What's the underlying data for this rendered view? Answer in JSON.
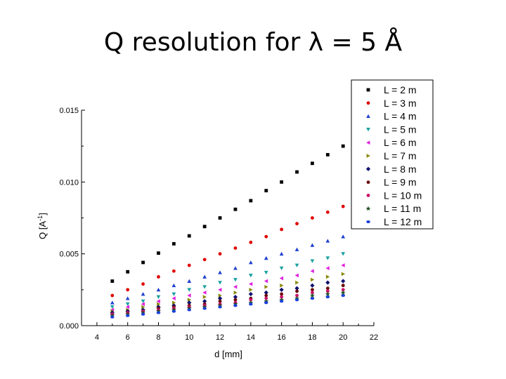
{
  "slide": {
    "title": "Q resolution for λ = 5 Å"
  },
  "chart_data": {
    "type": "scatter",
    "xlabel": "d [mm]",
    "ylabel": "Q [A",
    "ylabel_sup": "-1",
    "ylabel_end": "]",
    "xlim": [
      3,
      22
    ],
    "ylim": [
      0,
      0.015
    ],
    "xticks": [
      4,
      6,
      8,
      10,
      12,
      14,
      16,
      18,
      20,
      22
    ],
    "yticks": [
      0.0,
      0.005,
      0.01,
      0.015
    ],
    "ytick_labels": [
      "0.000",
      "0.005",
      "0.010",
      "0.015"
    ],
    "xtick_labels": [
      "4",
      "6",
      "8",
      "10",
      "12",
      "14",
      "16",
      "18",
      "20",
      "22"
    ],
    "legend_position": "top-right-outside",
    "x": [
      5,
      6,
      7,
      8,
      9,
      10,
      11,
      12,
      13,
      14,
      15,
      16,
      17,
      18,
      19,
      20
    ],
    "series": [
      {
        "name": "L = 2 m",
        "marker": "square",
        "color": "#000000",
        "values": [
          0.0031,
          0.00375,
          0.0044,
          0.00505,
          0.0057,
          0.00625,
          0.0069,
          0.0075,
          0.0081,
          0.0087,
          0.0094,
          0.01,
          0.0107,
          0.0113,
          0.0119,
          0.0125
        ]
      },
      {
        "name": "L = 3 m",
        "marker": "circle",
        "color": "#e00000",
        "values": [
          0.0021,
          0.0025,
          0.0029,
          0.0034,
          0.0038,
          0.0042,
          0.0046,
          0.005,
          0.0054,
          0.0058,
          0.0062,
          0.0067,
          0.0071,
          0.0075,
          0.0079,
          0.0083
        ]
      },
      {
        "name": "L = 4 m",
        "marker": "triangle-up",
        "color": "#1f3fd0",
        "values": [
          0.0016,
          0.0019,
          0.0022,
          0.0025,
          0.0028,
          0.0031,
          0.0034,
          0.0037,
          0.004,
          0.0044,
          0.0047,
          0.005,
          0.0053,
          0.0056,
          0.0059,
          0.0062
        ]
      },
      {
        "name": "L = 5 m",
        "marker": "triangle-down",
        "color": "#1aa0a0",
        "values": [
          0.0013,
          0.0015,
          0.0017,
          0.002,
          0.0022,
          0.0025,
          0.0027,
          0.003,
          0.0032,
          0.0035,
          0.0037,
          0.004,
          0.0042,
          0.0045,
          0.0047,
          0.005
        ]
      },
      {
        "name": "L = 6 m",
        "marker": "triangle-left",
        "color": "#e020e0",
        "values": [
          0.0011,
          0.0013,
          0.0015,
          0.0017,
          0.0019,
          0.0021,
          0.0023,
          0.0025,
          0.0027,
          0.0029,
          0.0031,
          0.0033,
          0.0035,
          0.0038,
          0.004,
          0.0042
        ]
      },
      {
        "name": "L = 7 m",
        "marker": "triangle-right",
        "color": "#8a8a10",
        "values": [
          0.001,
          0.0011,
          0.0013,
          0.0015,
          0.0016,
          0.0018,
          0.002,
          0.0021,
          0.0023,
          0.0025,
          0.0027,
          0.0028,
          0.003,
          0.0032,
          0.0034,
          0.0036
        ]
      },
      {
        "name": "L = 8 m",
        "marker": "diamond",
        "color": "#101070",
        "values": [
          0.0009,
          0.001,
          0.0011,
          0.0013,
          0.0014,
          0.0016,
          0.0017,
          0.0019,
          0.002,
          0.0022,
          0.0023,
          0.0025,
          0.0026,
          0.0028,
          0.003,
          0.0031
        ]
      },
      {
        "name": "L = 9 m",
        "marker": "hexagon",
        "color": "#6a0a0a",
        "values": [
          0.0008,
          0.0009,
          0.001,
          0.0012,
          0.0013,
          0.0014,
          0.0015,
          0.0017,
          0.0018,
          0.0019,
          0.0021,
          0.0022,
          0.0024,
          0.0025,
          0.0026,
          0.0028
        ]
      },
      {
        "name": "L = 10 m",
        "marker": "circle",
        "color": "#d0106a",
        "values": [
          0.0008,
          0.0009,
          0.001,
          0.0011,
          0.0012,
          0.0013,
          0.0014,
          0.0015,
          0.0016,
          0.0018,
          0.0019,
          0.002,
          0.0021,
          0.0023,
          0.0024,
          0.0025
        ]
      },
      {
        "name": "L = 11 m",
        "marker": "star",
        "color": "#205020",
        "values": [
          0.0007,
          0.0008,
          0.0009,
          0.001,
          0.0011,
          0.0012,
          0.0013,
          0.0014,
          0.0015,
          0.0016,
          0.0017,
          0.0018,
          0.0019,
          0.0021,
          0.0022,
          0.0023
        ]
      },
      {
        "name": "L = 12 m",
        "marker": "ellipse",
        "color": "#1a40d8",
        "values": [
          0.0006,
          0.0007,
          0.0008,
          0.0009,
          0.001,
          0.0011,
          0.0012,
          0.0013,
          0.0014,
          0.0015,
          0.0016,
          0.0017,
          0.0018,
          0.0019,
          0.002,
          0.0021
        ]
      }
    ]
  }
}
